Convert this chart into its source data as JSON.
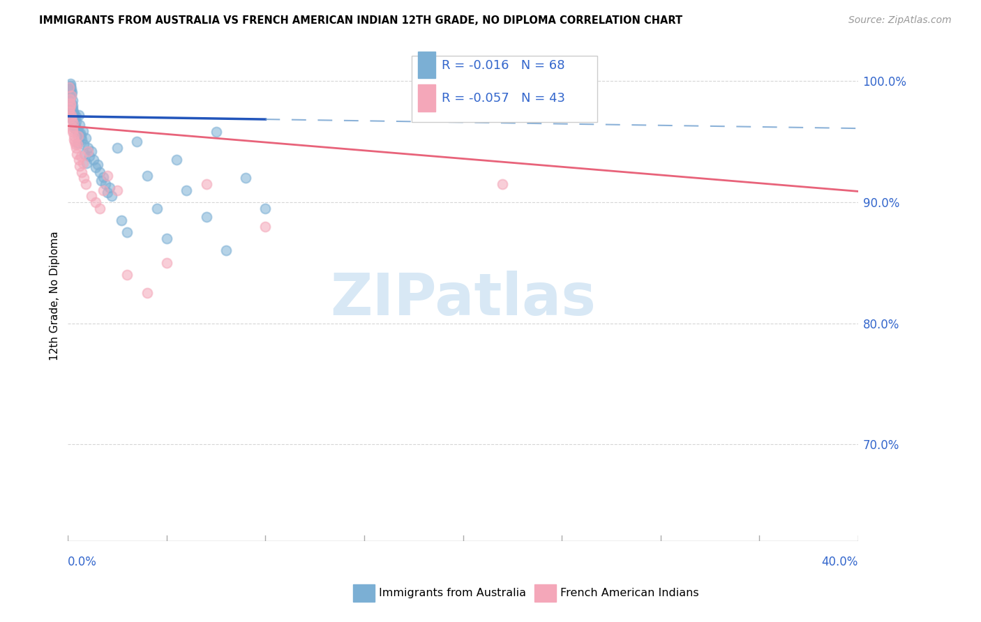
{
  "title": "IMMIGRANTS FROM AUSTRALIA VS FRENCH AMERICAN INDIAN 12TH GRADE, NO DIPLOMA CORRELATION CHART",
  "source": "Source: ZipAtlas.com",
  "ylabel": "12th Grade, No Diploma",
  "xlim": [
    0.0,
    40.0
  ],
  "ylim": [
    62.0,
    102.5
  ],
  "R_blue": -0.016,
  "N_blue": 68,
  "R_pink": -0.057,
  "N_pink": 43,
  "blue_scatter_color": "#7BAFD4",
  "pink_scatter_color": "#F4A7B9",
  "trend_blue_solid_color": "#2255BB",
  "trend_blue_dash_color": "#6699CC",
  "trend_pink_color": "#E8637A",
  "legend_text_color": "#3366CC",
  "ytick_color": "#3366CC",
  "xlabel_color": "#3366CC",
  "grid_color": "#CCCCCC",
  "watermark_color": "#D8E8F5",
  "blue_trend_solid_end_x": 10.0,
  "blue_trend_intercept": 97.1,
  "blue_trend_slope": -0.025,
  "pink_trend_intercept": 96.3,
  "pink_trend_slope": -0.135,
  "blue_x": [
    0.05,
    0.08,
    0.1,
    0.12,
    0.13,
    0.14,
    0.15,
    0.16,
    0.17,
    0.18,
    0.19,
    0.2,
    0.22,
    0.23,
    0.25,
    0.27,
    0.28,
    0.3,
    0.32,
    0.35,
    0.38,
    0.4,
    0.45,
    0.5,
    0.55,
    0.6,
    0.65,
    0.7,
    0.75,
    0.8,
    0.9,
    1.0,
    1.1,
    1.2,
    1.3,
    1.4,
    1.5,
    1.6,
    1.7,
    1.8,
    1.9,
    2.0,
    2.1,
    2.2,
    2.5,
    2.7,
    3.0,
    3.5,
    4.0,
    4.5,
    5.0,
    5.5,
    6.0,
    7.0,
    7.5,
    8.0,
    9.0,
    10.0,
    0.06,
    0.09,
    0.11,
    0.24,
    0.33,
    0.42,
    0.52,
    0.62,
    0.85,
    0.95
  ],
  "blue_y": [
    97.5,
    99.5,
    98.5,
    99.8,
    99.2,
    99.6,
    99.0,
    98.8,
    99.4,
    98.2,
    97.8,
    99.1,
    98.4,
    97.2,
    98.0,
    97.5,
    96.8,
    97.3,
    96.5,
    96.9,
    96.3,
    97.1,
    96.0,
    95.8,
    97.2,
    96.4,
    95.5,
    95.2,
    95.9,
    94.8,
    95.3,
    94.5,
    93.8,
    94.2,
    93.5,
    92.9,
    93.1,
    92.5,
    91.8,
    92.1,
    91.5,
    90.8,
    91.2,
    90.5,
    94.5,
    88.5,
    87.5,
    95.0,
    92.2,
    89.5,
    87.0,
    93.5,
    91.0,
    88.8,
    95.8,
    86.0,
    92.0,
    89.5,
    97.0,
    98.9,
    99.3,
    97.8,
    96.1,
    96.7,
    94.9,
    95.7,
    94.0,
    93.2
  ],
  "pink_x": [
    0.05,
    0.08,
    0.1,
    0.12,
    0.15,
    0.18,
    0.2,
    0.22,
    0.25,
    0.28,
    0.3,
    0.35,
    0.4,
    0.45,
    0.5,
    0.55,
    0.6,
    0.7,
    0.8,
    0.9,
    1.0,
    1.2,
    1.4,
    1.6,
    2.0,
    2.5,
    3.0,
    4.0,
    5.0,
    7.0,
    10.0,
    18.0,
    0.06,
    0.13,
    0.17,
    0.23,
    0.32,
    0.38,
    0.65,
    0.75,
    1.8,
    22.0,
    0.48
  ],
  "pink_y": [
    99.5,
    98.5,
    97.8,
    98.2,
    98.8,
    97.0,
    96.8,
    96.2,
    95.8,
    96.5,
    95.5,
    95.0,
    94.5,
    94.0,
    95.5,
    93.5,
    93.0,
    92.5,
    92.0,
    91.5,
    94.2,
    90.5,
    90.0,
    89.5,
    92.2,
    91.0,
    84.0,
    82.5,
    85.0,
    91.5,
    88.0,
    100.0,
    97.5,
    98.0,
    97.2,
    96.0,
    95.2,
    94.8,
    93.8,
    93.2,
    91.0,
    91.5,
    94.8
  ],
  "watermark_text": "ZIPatlas"
}
